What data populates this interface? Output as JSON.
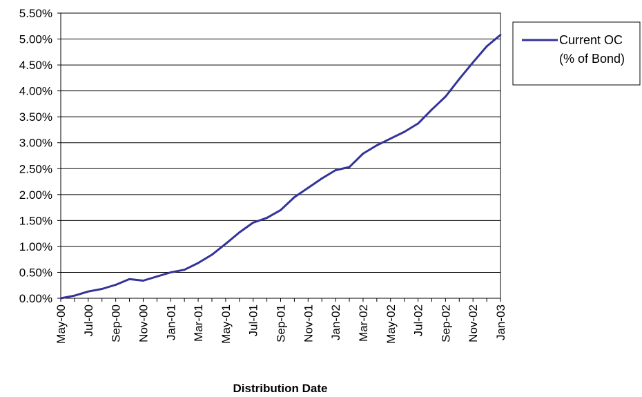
{
  "chart_data": {
    "type": "line",
    "xlabel": "Distribution Date",
    "ylabel": "",
    "ylim": [
      0,
      5.5
    ],
    "y_tick_labels": [
      "0.00%",
      "0.50%",
      "1.00%",
      "1.50%",
      "2.00%",
      "2.50%",
      "3.00%",
      "3.50%",
      "4.00%",
      "4.50%",
      "5.00%",
      "5.50%"
    ],
    "x_tick_labels": [
      "May-00",
      "Jul-00",
      "Sep-00",
      "Nov-00",
      "Jan-01",
      "Mar-01",
      "May-01",
      "Jul-01",
      "Sep-01",
      "Nov-01",
      "Jan-02",
      "Mar-02",
      "May-02",
      "Jul-02",
      "Sep-02",
      "Nov-02",
      "Jan-03"
    ],
    "grid": "horizontal",
    "legend_position": "right",
    "categories": [
      "May-00",
      "Jun-00",
      "Jul-00",
      "Aug-00",
      "Sep-00",
      "Oct-00",
      "Nov-00",
      "Dec-00",
      "Jan-01",
      "Feb-01",
      "Mar-01",
      "Apr-01",
      "May-01",
      "Jun-01",
      "Jul-01",
      "Aug-01",
      "Sep-01",
      "Oct-01",
      "Nov-01",
      "Dec-01",
      "Jan-02",
      "Feb-02",
      "Mar-02",
      "Apr-02",
      "May-02",
      "Jun-02",
      "Jul-02",
      "Aug-02",
      "Sep-02",
      "Oct-02",
      "Nov-02",
      "Dec-02",
      "Jan-03"
    ],
    "series": [
      {
        "name": "Current OC (% of Bond)",
        "name_lines": [
          "Current OC",
          "(% of Bond)"
        ],
        "color": "#333399",
        "values": [
          0.0,
          0.05,
          0.13,
          0.18,
          0.26,
          0.37,
          0.34,
          0.42,
          0.5,
          0.55,
          0.68,
          0.84,
          1.05,
          1.27,
          1.46,
          1.55,
          1.7,
          1.95,
          2.13,
          2.31,
          2.47,
          2.53,
          2.79,
          2.95,
          3.08,
          3.21,
          3.37,
          3.64,
          3.89,
          4.23,
          4.55,
          4.86,
          5.08
        ]
      }
    ]
  }
}
